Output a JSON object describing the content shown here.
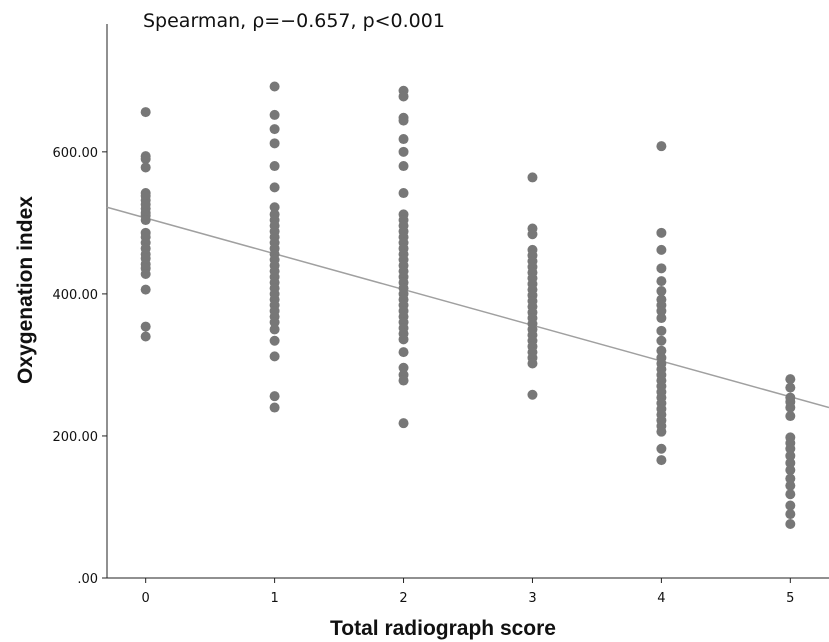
{
  "chart_data": {
    "type": "scatter",
    "title": "Spearman, ρ=−0.657, p<0.001",
    "xlabel": "Total radiograph score",
    "ylabel": "Oxygenation index",
    "x_ticks": [
      "0",
      "1",
      "2",
      "3",
      "4",
      "5"
    ],
    "y_ticks": [
      ".00",
      "200.00",
      "400.00",
      "600.00"
    ],
    "xlim": [
      -0.3,
      5.3
    ],
    "ylim": [
      0,
      780
    ],
    "grid": false,
    "point_color": "#777777",
    "line_color": "#a0a0a0",
    "fit_line": {
      "x": [
        -0.3,
        5.3
      ],
      "y": [
        522,
        240
      ]
    },
    "points": [
      {
        "x": 0,
        "y": 656
      },
      {
        "x": 0,
        "y": 594
      },
      {
        "x": 0,
        "y": 590
      },
      {
        "x": 0,
        "y": 578
      },
      {
        "x": 0,
        "y": 542
      },
      {
        "x": 0,
        "y": 538
      },
      {
        "x": 0,
        "y": 532
      },
      {
        "x": 0,
        "y": 526
      },
      {
        "x": 0,
        "y": 520
      },
      {
        "x": 0,
        "y": 514
      },
      {
        "x": 0,
        "y": 510
      },
      {
        "x": 0,
        "y": 504
      },
      {
        "x": 0,
        "y": 486
      },
      {
        "x": 0,
        "y": 480
      },
      {
        "x": 0,
        "y": 472
      },
      {
        "x": 0,
        "y": 464
      },
      {
        "x": 0,
        "y": 456
      },
      {
        "x": 0,
        "y": 450
      },
      {
        "x": 0,
        "y": 442
      },
      {
        "x": 0,
        "y": 436
      },
      {
        "x": 0,
        "y": 428
      },
      {
        "x": 0,
        "y": 406
      },
      {
        "x": 0,
        "y": 354
      },
      {
        "x": 0,
        "y": 340
      },
      {
        "x": 1,
        "y": 692
      },
      {
        "x": 1,
        "y": 652
      },
      {
        "x": 1,
        "y": 632
      },
      {
        "x": 1,
        "y": 612
      },
      {
        "x": 1,
        "y": 580
      },
      {
        "x": 1,
        "y": 550
      },
      {
        "x": 1,
        "y": 522
      },
      {
        "x": 1,
        "y": 512
      },
      {
        "x": 1,
        "y": 504
      },
      {
        "x": 1,
        "y": 496
      },
      {
        "x": 1,
        "y": 488
      },
      {
        "x": 1,
        "y": 480
      },
      {
        "x": 1,
        "y": 472
      },
      {
        "x": 1,
        "y": 464
      },
      {
        "x": 1,
        "y": 456
      },
      {
        "x": 1,
        "y": 448
      },
      {
        "x": 1,
        "y": 440
      },
      {
        "x": 1,
        "y": 432
      },
      {
        "x": 1,
        "y": 424
      },
      {
        "x": 1,
        "y": 416
      },
      {
        "x": 1,
        "y": 408
      },
      {
        "x": 1,
        "y": 400
      },
      {
        "x": 1,
        "y": 392
      },
      {
        "x": 1,
        "y": 384
      },
      {
        "x": 1,
        "y": 376
      },
      {
        "x": 1,
        "y": 368
      },
      {
        "x": 1,
        "y": 360
      },
      {
        "x": 1,
        "y": 350
      },
      {
        "x": 1,
        "y": 334
      },
      {
        "x": 1,
        "y": 312
      },
      {
        "x": 1,
        "y": 256
      },
      {
        "x": 1,
        "y": 240
      },
      {
        "x": 2,
        "y": 686
      },
      {
        "x": 2,
        "y": 678
      },
      {
        "x": 2,
        "y": 648
      },
      {
        "x": 2,
        "y": 644
      },
      {
        "x": 2,
        "y": 618
      },
      {
        "x": 2,
        "y": 600
      },
      {
        "x": 2,
        "y": 580
      },
      {
        "x": 2,
        "y": 542
      },
      {
        "x": 2,
        "y": 512
      },
      {
        "x": 2,
        "y": 504
      },
      {
        "x": 2,
        "y": 496
      },
      {
        "x": 2,
        "y": 488
      },
      {
        "x": 2,
        "y": 480
      },
      {
        "x": 2,
        "y": 472
      },
      {
        "x": 2,
        "y": 464
      },
      {
        "x": 2,
        "y": 456
      },
      {
        "x": 2,
        "y": 448
      },
      {
        "x": 2,
        "y": 440
      },
      {
        "x": 2,
        "y": 432
      },
      {
        "x": 2,
        "y": 424
      },
      {
        "x": 2,
        "y": 416
      },
      {
        "x": 2,
        "y": 408
      },
      {
        "x": 2,
        "y": 400
      },
      {
        "x": 2,
        "y": 392
      },
      {
        "x": 2,
        "y": 384
      },
      {
        "x": 2,
        "y": 376
      },
      {
        "x": 2,
        "y": 368
      },
      {
        "x": 2,
        "y": 360
      },
      {
        "x": 2,
        "y": 352
      },
      {
        "x": 2,
        "y": 344
      },
      {
        "x": 2,
        "y": 336
      },
      {
        "x": 2,
        "y": 318
      },
      {
        "x": 2,
        "y": 296
      },
      {
        "x": 2,
        "y": 286
      },
      {
        "x": 2,
        "y": 278
      },
      {
        "x": 2,
        "y": 218
      },
      {
        "x": 3,
        "y": 564
      },
      {
        "x": 3,
        "y": 492
      },
      {
        "x": 3,
        "y": 484
      },
      {
        "x": 3,
        "y": 462
      },
      {
        "x": 3,
        "y": 454
      },
      {
        "x": 3,
        "y": 446
      },
      {
        "x": 3,
        "y": 438
      },
      {
        "x": 3,
        "y": 430
      },
      {
        "x": 3,
        "y": 422
      },
      {
        "x": 3,
        "y": 414
      },
      {
        "x": 3,
        "y": 406
      },
      {
        "x": 3,
        "y": 398
      },
      {
        "x": 3,
        "y": 390
      },
      {
        "x": 3,
        "y": 382
      },
      {
        "x": 3,
        "y": 374
      },
      {
        "x": 3,
        "y": 366
      },
      {
        "x": 3,
        "y": 358
      },
      {
        "x": 3,
        "y": 350
      },
      {
        "x": 3,
        "y": 342
      },
      {
        "x": 3,
        "y": 334
      },
      {
        "x": 3,
        "y": 326
      },
      {
        "x": 3,
        "y": 318
      },
      {
        "x": 3,
        "y": 310
      },
      {
        "x": 3,
        "y": 302
      },
      {
        "x": 3,
        "y": 258
      },
      {
        "x": 4,
        "y": 608
      },
      {
        "x": 4,
        "y": 486
      },
      {
        "x": 4,
        "y": 462
      },
      {
        "x": 4,
        "y": 436
      },
      {
        "x": 4,
        "y": 418
      },
      {
        "x": 4,
        "y": 404
      },
      {
        "x": 4,
        "y": 392
      },
      {
        "x": 4,
        "y": 384
      },
      {
        "x": 4,
        "y": 376
      },
      {
        "x": 4,
        "y": 366
      },
      {
        "x": 4,
        "y": 348
      },
      {
        "x": 4,
        "y": 334
      },
      {
        "x": 4,
        "y": 320
      },
      {
        "x": 4,
        "y": 310
      },
      {
        "x": 4,
        "y": 302
      },
      {
        "x": 4,
        "y": 294
      },
      {
        "x": 4,
        "y": 286
      },
      {
        "x": 4,
        "y": 278
      },
      {
        "x": 4,
        "y": 270
      },
      {
        "x": 4,
        "y": 262
      },
      {
        "x": 4,
        "y": 254
      },
      {
        "x": 4,
        "y": 246
      },
      {
        "x": 4,
        "y": 238
      },
      {
        "x": 4,
        "y": 230
      },
      {
        "x": 4,
        "y": 222
      },
      {
        "x": 4,
        "y": 214
      },
      {
        "x": 4,
        "y": 206
      },
      {
        "x": 4,
        "y": 182
      },
      {
        "x": 4,
        "y": 166
      },
      {
        "x": 5,
        "y": 280
      },
      {
        "x": 5,
        "y": 268
      },
      {
        "x": 5,
        "y": 254
      },
      {
        "x": 5,
        "y": 248
      },
      {
        "x": 5,
        "y": 240
      },
      {
        "x": 5,
        "y": 228
      },
      {
        "x": 5,
        "y": 198
      },
      {
        "x": 5,
        "y": 190
      },
      {
        "x": 5,
        "y": 182
      },
      {
        "x": 5,
        "y": 172
      },
      {
        "x": 5,
        "y": 162
      },
      {
        "x": 5,
        "y": 152
      },
      {
        "x": 5,
        "y": 140
      },
      {
        "x": 5,
        "y": 130
      },
      {
        "x": 5,
        "y": 118
      },
      {
        "x": 5,
        "y": 102
      },
      {
        "x": 5,
        "y": 90
      },
      {
        "x": 5,
        "y": 76
      }
    ]
  }
}
